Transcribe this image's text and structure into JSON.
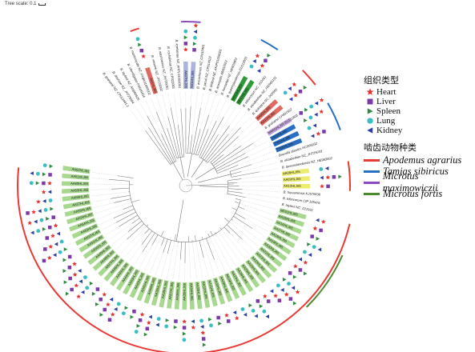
{
  "scale": {
    "label": "Tree scale: 0.1"
  },
  "tissue_legend": {
    "title": "组织类型",
    "items": [
      {
        "label": "Heart",
        "shape": "star-icon",
        "color": "#e8322e"
      },
      {
        "label": "Liver",
        "shape": "square-icon",
        "color": "#7b3aa8"
      },
      {
        "label": "Spleen",
        "shape": "triangle-right-icon",
        "color": "#2e8b3e"
      },
      {
        "label": "Lung",
        "shape": "circle-icon",
        "color": "#3cbcc4"
      },
      {
        "label": "Kidney",
        "shape": "triangle-left-icon",
        "color": "#2c3ea0"
      }
    ]
  },
  "host_legend": {
    "title": "啮齿动物种类",
    "items": [
      {
        "label": "Apodemus agrarius",
        "color": "#e83a36"
      },
      {
        "label": "Tamias sibiricus",
        "color": "#2a6fc4"
      },
      {
        "label": "Microtus maximowiczii",
        "color": "#8a4bbd"
      },
      {
        "label": "Microtus fortis",
        "color": "#4a8a2c"
      }
    ]
  },
  "tree": {
    "leaves": [
      {
        "label": "B. grahamii NZ_CP012461.1",
        "bg": ""
      },
      {
        "label": "B. doshiae NZ_JH725094",
        "bg": ""
      },
      {
        "label": "B. taylorii NZ_AM260525",
        "bg": ""
      },
      {
        "label": "B. clarridgeiae FN645454",
        "bg": ""
      },
      {
        "label": "B. mastomydis NZ_FXBK01000001",
        "bg": ""
      },
      {
        "label": "AA1HLJ65",
        "bg": "#e06a60"
      },
      {
        "label": "B. vinsonii NZ_JH725082",
        "bg": ""
      },
      {
        "label": "B. washoensis NZ_JH725051",
        "bg": ""
      },
      {
        "label": "B. rochalimae NZ_CP022001",
        "bg": ""
      },
      {
        "label": "B. koehlerae NZ_AHPL01000001",
        "bg": ""
      },
      {
        "label": "AA07HLJ65",
        "bg": "#aab4e0"
      },
      {
        "label": "AA14HLJ65",
        "bg": "#aab4e0"
      },
      {
        "label": "B. ancashensis NZ_CP010401",
        "bg": ""
      },
      {
        "label": "B. jaculi NZ_CP014522",
        "bg": ""
      },
      {
        "label": "B. birtlesii NZ_AKIP01000001",
        "bg": ""
      },
      {
        "label": "B. acomydis AB602553",
        "bg": ""
      },
      {
        "label": "B. henselae NZ_HE609402",
        "bg": ""
      },
      {
        "label": "B. queenslandensis EU111803",
        "bg": ""
      },
      {
        "label": "MF03HLJ65",
        "bg": "#2e9a3a"
      },
      {
        "label": "MF07HLJ65",
        "bg": "#2e9a3a"
      },
      {
        "label": "B. tribocorum NC_010161",
        "bg": ""
      },
      {
        "label": "B. elizabethae NZ_HG969191",
        "bg": ""
      },
      {
        "label": "B. quintana NC_005955",
        "bg": ""
      },
      {
        "label": "AA05HLJ65",
        "bg": "#e06a60"
      },
      {
        "label": "AA10HLJ65",
        "bg": "#e06a60"
      },
      {
        "label": "B. grahamii CP001562",
        "bg": ""
      },
      {
        "label": "MM01HLJ65 EU111803",
        "bg": "#c8a8e0"
      },
      {
        "label": "TS02HLJ65",
        "bg": "#2a6fc4"
      },
      {
        "label": "TS04HLJ65",
        "bg": "#2a6fc4"
      },
      {
        "label": "TS05HLJ65",
        "bg": "#2a6fc4"
      },
      {
        "label": "Brucella abortus NC006932",
        "bg": ""
      },
      {
        "label": "B. elizabethae NZ_JH725033",
        "bg": ""
      },
      {
        "label": "B. queenslandensis NZ_HE983002",
        "bg": ""
      },
      {
        "label": "AA08HLJ65",
        "bg": "#ecec70"
      },
      {
        "label": "AA09HLJ65",
        "bg": "#ecec70"
      },
      {
        "label": "AA12HLJ65",
        "bg": "#ecec70"
      },
      {
        "label": "B. fuyuanensis KJ570638",
        "bg": ""
      },
      {
        "label": "B. tribocorum CIP 105476",
        "bg": ""
      },
      {
        "label": "B. taylorii NC_021931",
        "bg": ""
      },
      {
        "label": "MF01HLJ65",
        "bg": "#a8d890"
      },
      {
        "label": "AA15HLJ65",
        "bg": "#a8d890"
      },
      {
        "label": "AA16HLJ65",
        "bg": "#a8d890"
      },
      {
        "label": "AA17HLJ65",
        "bg": "#a8d890"
      },
      {
        "label": "AA18HLJ65",
        "bg": "#a8d890"
      },
      {
        "label": "AA19HLJ65",
        "bg": "#a8d890"
      },
      {
        "label": "AA20HLJ65",
        "bg": "#a8d890"
      },
      {
        "label": "AA21HLJ65",
        "bg": "#a8d890"
      },
      {
        "label": "AA22HLJ65",
        "bg": "#a8d890"
      },
      {
        "label": "AA23HLJ65",
        "bg": "#a8d890"
      },
      {
        "label": "AA24HLJ65",
        "bg": "#a8d890"
      },
      {
        "label": "AA25HLJ65",
        "bg": "#a8d890"
      },
      {
        "label": "AA26HLJ65",
        "bg": "#a8d890"
      },
      {
        "label": "AA27HLJ65",
        "bg": "#a8d890"
      },
      {
        "label": "AA28HLJ65",
        "bg": "#a8d890"
      },
      {
        "label": "AA29HLJ65",
        "bg": "#a8d890"
      },
      {
        "label": "AA30HLJ65",
        "bg": "#a8d890"
      },
      {
        "label": "AA31HLJ65",
        "bg": "#a8d890"
      },
      {
        "label": "AA32HLJ65",
        "bg": "#a8d890"
      },
      {
        "label": "AA33HLJ65",
        "bg": "#a8d890"
      },
      {
        "label": "AA34HLJ65",
        "bg": "#a8d890"
      },
      {
        "label": "AA35HLJ65",
        "bg": "#a8d890"
      },
      {
        "label": "AA36HLJ65",
        "bg": "#a8d890"
      },
      {
        "label": "AA37HLJ65",
        "bg": "#a8d890"
      },
      {
        "label": "AA38HLJ65",
        "bg": "#a8d890"
      },
      {
        "label": "AA39HLJ65",
        "bg": "#a8d890"
      },
      {
        "label": "AA40HLJ65",
        "bg": "#a8d890"
      },
      {
        "label": "AA41HLJ65",
        "bg": "#a8d890"
      },
      {
        "label": "AA42HLJ65",
        "bg": "#a8d890"
      },
      {
        "label": "AA43HLJ65",
        "bg": "#a8d890"
      },
      {
        "label": "AA44HLJ65",
        "bg": "#a8d890"
      },
      {
        "label": "AA45HLJ65",
        "bg": "#a8d890"
      },
      {
        "label": "AA46HLJ65",
        "bg": "#a8d890"
      },
      {
        "label": "AA47HLJ65",
        "bg": "#a8d890"
      },
      {
        "label": "AA48HLJ65",
        "bg": "#a8d890"
      },
      {
        "label": "AA49HLJ65",
        "bg": "#a8d890"
      },
      {
        "label": "AA50HLJ65",
        "bg": "#a8d890"
      },
      {
        "label": "AA51HLJ65",
        "bg": "#a8d890"
      },
      {
        "label": "AA52HLJ65",
        "bg": "#a8d890"
      },
      {
        "label": "AA53HLJ65",
        "bg": "#a8d890"
      },
      {
        "label": "AA54HLJ65",
        "bg": "#a8d890"
      },
      {
        "label": "AA55HLJ65",
        "bg": "#a8d890"
      },
      {
        "label": "AA56HLJ65",
        "bg": "#a8d890"
      },
      {
        "label": "AA57HLJ65",
        "bg": "#a8d890"
      },
      {
        "label": "AA58HLJ65",
        "bg": "#a8d890"
      },
      {
        "label": "AA59HLJ65",
        "bg": "#a8d890"
      },
      {
        "label": "AA60HLJ65",
        "bg": "#a8d890"
      },
      {
        "label": "AA61HLJ65",
        "bg": "#a8d890"
      },
      {
        "label": "AA62HLJ65",
        "bg": "#a8d890"
      }
    ]
  }
}
